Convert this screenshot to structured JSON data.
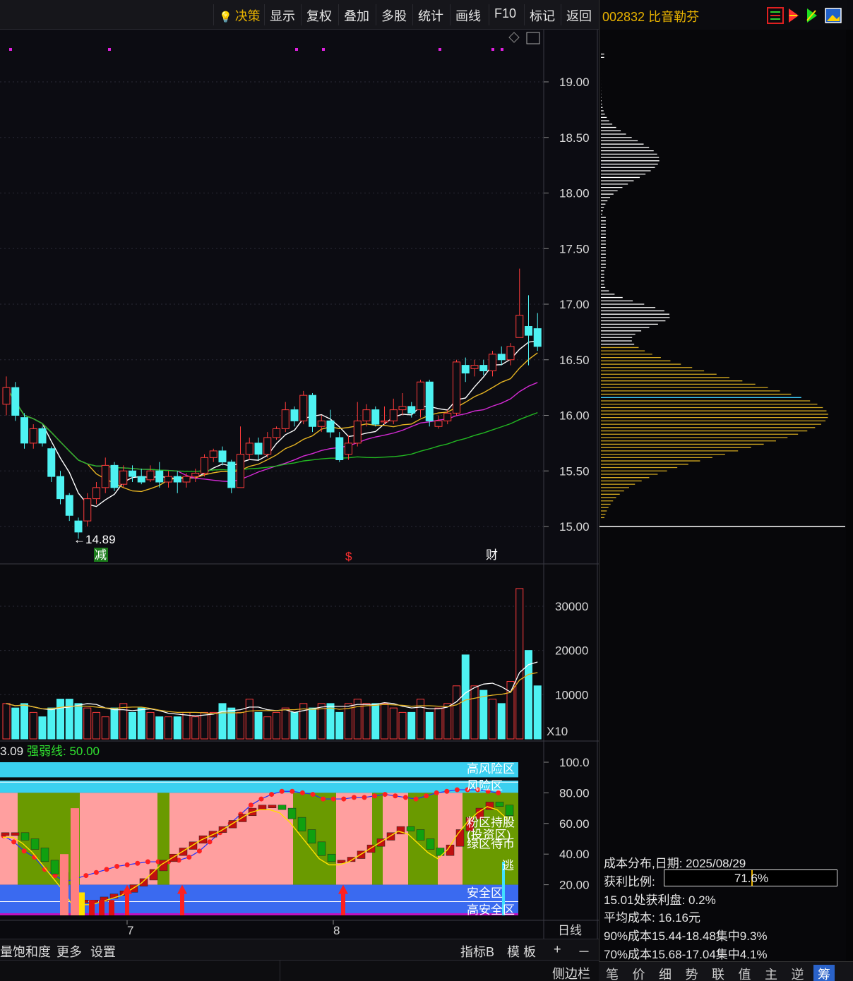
{
  "menu": {
    "items": [
      {
        "label": "决策",
        "icon": "bulb-icon"
      },
      {
        "label": "显示"
      },
      {
        "label": "复权"
      },
      {
        "label": "叠加"
      },
      {
        "label": "多股"
      },
      {
        "label": "统计"
      },
      {
        "label": "画线"
      },
      {
        "label": "F10"
      },
      {
        "label": "标记"
      },
      {
        "label": "返回"
      }
    ]
  },
  "stock": {
    "code_name": "002832 比音勒芬"
  },
  "price_axis": [
    "19.00",
    "18.50",
    "18.00",
    "17.50",
    "17.00",
    "16.50",
    "16.00",
    "15.50",
    "15.00"
  ],
  "price_annotations": {
    "low_label": "←14.89",
    "mark_jian": "减",
    "mark_s": "$",
    "mark_cai": "财"
  },
  "volume_axis": [
    "30000",
    "20000",
    "10000"
  ],
  "volume_unit": "X10",
  "indicator": {
    "header_value": "3.09",
    "header_strength": "强弱线: 50.00",
    "axis": [
      "100.0",
      "80.00",
      "60.00",
      "40.00",
      "20.00"
    ],
    "zones": {
      "high_risk": "高风险区",
      "risk": "风险区",
      "pink_hold": "粉区持股",
      "invest": "(投资区)",
      "green_wait": "绿区待币",
      "escape": "逃",
      "safe": "安全区",
      "high_safe": "高安全区"
    },
    "x_ticks": [
      "7",
      "8"
    ],
    "period": "日线"
  },
  "bottom_toolbar": {
    "left_items": [
      "量饱和度",
      "更多",
      "设置"
    ],
    "right_items": [
      "指标B",
      "模 板"
    ],
    "plus": "+",
    "minus": "－",
    "sidebar": "侧边栏"
  },
  "chip": {
    "title": "成本分布,日期: 2025/08/29",
    "profit_label": "获利比例:",
    "profit_value": "71.6%",
    "profit_ratio": 0.716,
    "at_price": "15.01处获利盘: 0.2%",
    "avg_cost": "平均成本: 16.16元",
    "c90": "90%成本15.44-18.48集中9.3%",
    "c70": "70%成本15.68-17.04集中4.1%"
  },
  "side_tabs": [
    "笔",
    "价",
    "细",
    "势",
    "联",
    "值",
    "主",
    "逆",
    "筹"
  ],
  "colors": {
    "up": "#ff3b3b",
    "down": "#4ef2f2",
    "ma5": "#ffffff",
    "ma10": "#e6b422",
    "ma20": "#d42ad4",
    "ma60": "#22b822",
    "accent": "#e8b200"
  },
  "chart_data": {
    "type": "candlestick",
    "ylim": [
      14.7,
      19.4
    ],
    "candles": [
      [
        16.1,
        16.25,
        16.35,
        16.0
      ],
      [
        16.25,
        16.0,
        16.3,
        15.95
      ],
      [
        15.98,
        15.75,
        16.02,
        15.7
      ],
      [
        15.75,
        15.88,
        15.92,
        15.7
      ],
      [
        15.88,
        15.75,
        15.9,
        15.72
      ],
      [
        15.7,
        15.45,
        15.72,
        15.4
      ],
      [
        15.45,
        15.25,
        15.5,
        15.2
      ],
      [
        15.28,
        15.1,
        15.3,
        15.05
      ],
      [
        15.05,
        14.95,
        15.08,
        14.89
      ],
      [
        15.05,
        15.25,
        15.3,
        15.0
      ],
      [
        15.25,
        15.35,
        15.4,
        15.2
      ],
      [
        15.35,
        15.55,
        15.62,
        15.3
      ],
      [
        15.55,
        15.35,
        15.58,
        15.32
      ],
      [
        15.38,
        15.5,
        15.55,
        15.35
      ],
      [
        15.5,
        15.45,
        15.55,
        15.4
      ],
      [
        15.45,
        15.4,
        15.52,
        15.38
      ],
      [
        15.42,
        15.5,
        15.55,
        15.4
      ],
      [
        15.5,
        15.4,
        15.58,
        15.35
      ],
      [
        15.4,
        15.45,
        15.5,
        15.35
      ],
      [
        15.45,
        15.4,
        15.5,
        15.3
      ],
      [
        15.4,
        15.45,
        15.48,
        15.35
      ],
      [
        15.45,
        15.48,
        15.52,
        15.4
      ],
      [
        15.48,
        15.62,
        15.65,
        15.45
      ],
      [
        15.62,
        15.68,
        15.7,
        15.58
      ],
      [
        15.68,
        15.58,
        15.72,
        15.55
      ],
      [
        15.58,
        15.35,
        15.6,
        15.3
      ],
      [
        15.35,
        15.65,
        15.9,
        15.35
      ],
      [
        15.65,
        15.75,
        15.8,
        15.6
      ],
      [
        15.75,
        15.65,
        15.8,
        15.6
      ],
      [
        15.65,
        15.8,
        15.85,
        15.62
      ],
      [
        15.8,
        15.88,
        15.9,
        15.78
      ],
      [
        15.88,
        16.05,
        16.12,
        15.85
      ],
      [
        16.05,
        15.95,
        16.08,
        15.9
      ],
      [
        15.95,
        16.18,
        16.22,
        15.92
      ],
      [
        16.18,
        15.9,
        16.2,
        15.85
      ],
      [
        15.9,
        15.95,
        16.0,
        15.85
      ],
      [
        15.95,
        15.85,
        16.05,
        15.8
      ],
      [
        15.8,
        15.6,
        15.85,
        15.58
      ],
      [
        15.65,
        15.75,
        15.82,
        15.6
      ],
      [
        15.75,
        15.95,
        16.12,
        15.72
      ],
      [
        15.95,
        16.05,
        16.1,
        15.9
      ],
      [
        16.05,
        15.92,
        16.08,
        15.9
      ],
      [
        15.95,
        15.95,
        16.08,
        15.92
      ],
      [
        15.95,
        16.05,
        16.15,
        15.92
      ],
      [
        16.05,
        16.08,
        16.2,
        16.0
      ],
      [
        16.08,
        16.02,
        16.12,
        15.98
      ],
      [
        16.05,
        16.3,
        16.32,
        15.98
      ],
      [
        16.3,
        15.95,
        16.32,
        15.9
      ],
      [
        15.9,
        15.95,
        16.0,
        15.88
      ],
      [
        15.95,
        16.02,
        16.05,
        15.92
      ],
      [
        16.02,
        16.48,
        16.5,
        16.0
      ],
      [
        16.45,
        16.38,
        16.52,
        16.3
      ],
      [
        16.42,
        16.45,
        16.5,
        16.35
      ],
      [
        16.45,
        16.4,
        16.5,
        16.36
      ],
      [
        16.4,
        16.55,
        16.58,
        16.35
      ],
      [
        16.55,
        16.5,
        16.62,
        16.45
      ],
      [
        16.5,
        16.62,
        16.65,
        16.45
      ],
      [
        16.7,
        16.9,
        17.32,
        16.7
      ],
      [
        16.8,
        16.72,
        17.08,
        16.45
      ],
      [
        16.78,
        16.62,
        16.92,
        16.58
      ]
    ],
    "volumes": [
      8,
      7,
      8,
      6,
      5,
      7,
      9,
      9,
      8,
      7,
      6,
      5,
      7,
      8,
      6,
      7,
      6,
      5,
      5,
      5,
      6,
      5,
      6,
      6,
      8,
      7,
      6,
      9,
      6,
      5,
      6,
      7,
      6,
      8,
      7,
      8,
      8,
      6,
      8,
      9,
      8,
      8,
      8,
      7,
      6,
      6,
      9,
      6,
      7,
      8,
      12,
      19,
      12,
      11,
      9,
      8,
      13,
      34,
      20,
      12
    ],
    "chip_note": "volume in x10 units"
  }
}
